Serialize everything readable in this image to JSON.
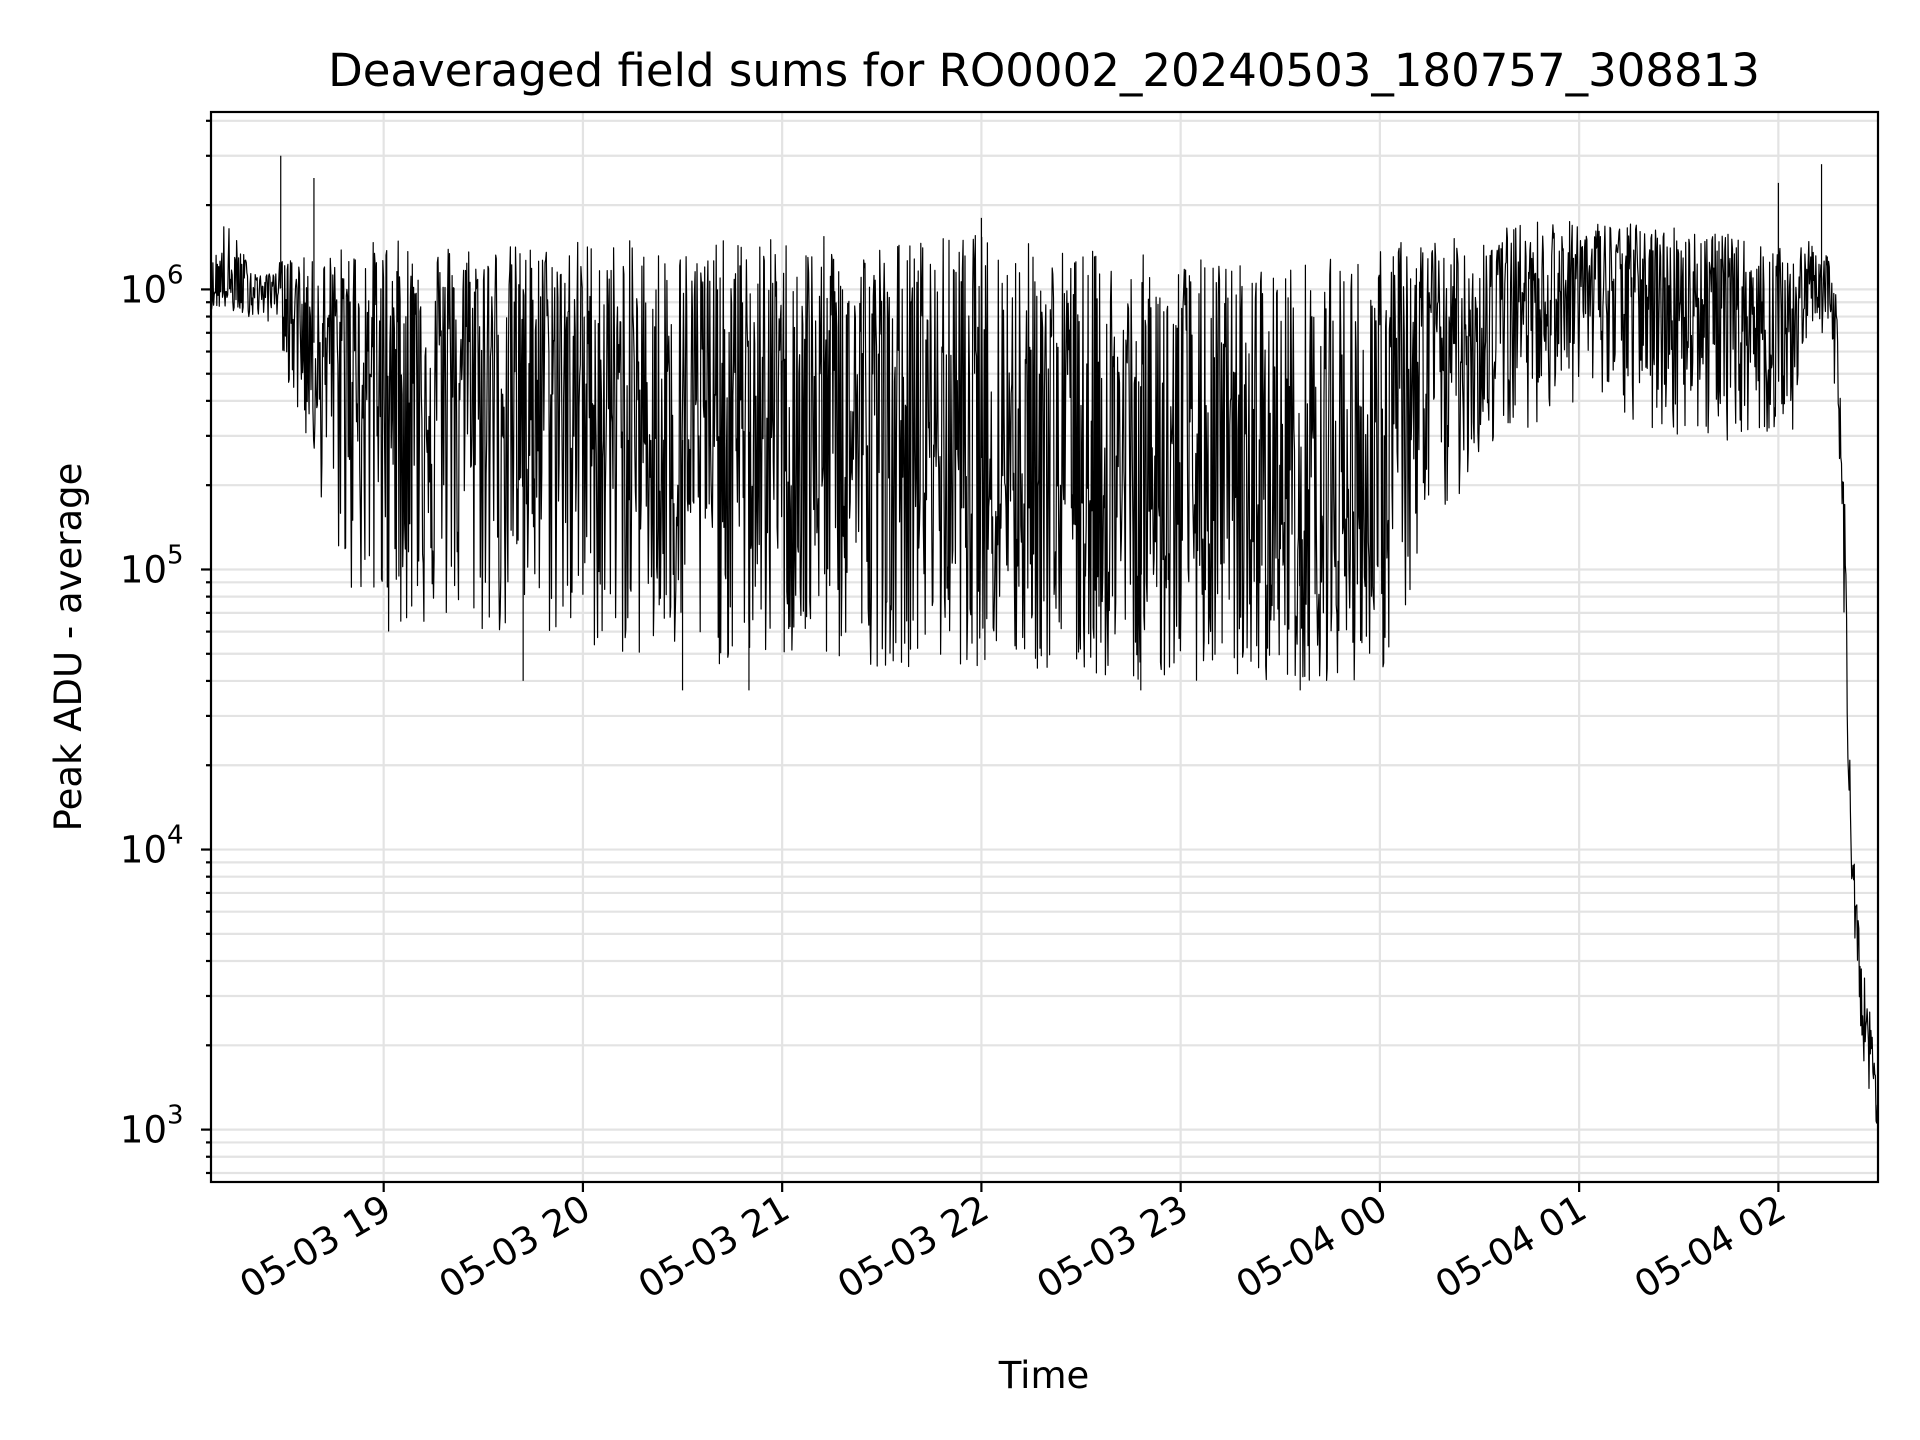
{
  "chart_data": {
    "type": "line",
    "title": "Deaveraged field sums for RO0002_20240503_180757_308813",
    "xlabel": "Time",
    "ylabel": "Peak ADU - average",
    "yscale": "log",
    "xlim": [
      "05-03 18:08",
      "05-04 02:30"
    ],
    "ylim": [
      650,
      4300000
    ],
    "grid": true,
    "x_ticks": [
      "05-03 19",
      "05-03 20",
      "05-03 21",
      "05-03 22",
      "05-03 23",
      "05-04 00",
      "05-04 01",
      "05-04 02"
    ],
    "y_ticks": [
      {
        "base": "10",
        "exp": "3",
        "value": 1000
      },
      {
        "base": "10",
        "exp": "4",
        "value": 10000
      },
      {
        "base": "10",
        "exp": "5",
        "value": 100000
      },
      {
        "base": "10",
        "exp": "6",
        "value": 1000000
      }
    ],
    "series_color": "#000000",
    "series": [
      {
        "x": [
          "05-03 18:08",
          "05-03 18:12",
          "05-03 18:16",
          "05-03 18:20",
          "05-03 18:24",
          "05-03 18:28",
          "05-03 18:32",
          "05-03 18:36",
          "05-03 18:40",
          "05-03 18:45",
          "05-03 18:50",
          "05-03 18:55",
          "05-03 19:00",
          "05-03 19:10",
          "05-03 19:20",
          "05-03 19:30",
          "05-03 19:40",
          "05-03 19:50",
          "05-03 20:00",
          "05-03 20:10",
          "05-03 20:20",
          "05-03 20:30",
          "05-03 20:40",
          "05-03 20:50",
          "05-03 21:00",
          "05-03 21:15",
          "05-03 21:30",
          "05-03 21:45",
          "05-03 22:00",
          "05-03 22:15",
          "05-03 22:30",
          "05-03 22:45",
          "05-03 23:00",
          "05-03 23:15",
          "05-03 23:30",
          "05-03 23:45",
          "05-04 00:00",
          "05-04 00:10",
          "05-04 00:20",
          "05-04 00:30",
          "05-04 00:40",
          "05-04 00:50",
          "05-04 01:00",
          "05-04 01:10",
          "05-04 01:20",
          "05-04 01:30",
          "05-04 01:40",
          "05-04 01:50",
          "05-04 02:00",
          "05-04 02:05",
          "05-04 02:10",
          "05-04 02:15",
          "05-04 02:18",
          "05-04 02:20",
          "05-04 02:22",
          "05-04 02:24",
          "05-04 02:26",
          "05-04 02:28",
          "05-04 02:30"
        ],
        "mid": [
          1000000,
          1000000,
          950000,
          1050000,
          1000000,
          1050000,
          900000,
          800000,
          600000,
          600000,
          550000,
          500000,
          500000,
          500000,
          480000,
          470000,
          470000,
          470000,
          420000,
          330000,
          300000,
          290000,
          300000,
          310000,
          300000,
          290000,
          280000,
          290000,
          250000,
          240000,
          200000,
          180000,
          160000,
          150000,
          150000,
          150000,
          180000,
          400000,
          600000,
          750000,
          900000,
          1000000,
          1050000,
          1000000,
          1000000,
          950000,
          900000,
          800000,
          700000,
          800000,
          1200000,
          1000000,
          500000,
          100000,
          10000,
          4000,
          2500,
          1800,
          1100
        ],
        "high": [
          1200000,
          1800000,
          1500000,
          1200000,
          1100000,
          1250000,
          1300000,
          1300000,
          1250000,
          1400000,
          1450000,
          1500000,
          1500000,
          1500000,
          1500000,
          1500000,
          1450000,
          1450000,
          1550000,
          1500000,
          1500000,
          1450000,
          1500000,
          1500000,
          1550000,
          1550000,
          1500000,
          1550000,
          1600000,
          1500000,
          1400000,
          1350000,
          1300000,
          1300000,
          1250000,
          1300000,
          1400000,
          1600000,
          1500000,
          1600000,
          1700000,
          1800000,
          1750000,
          1750000,
          1700000,
          1700000,
          1650000,
          1500000,
          1400000,
          1400000,
          1500000,
          1300000,
          900000,
          200000,
          12000,
          6000,
          3600,
          2400,
          1300
        ],
        "low": [
          850000,
          850000,
          800000,
          800000,
          750000,
          800000,
          400000,
          300000,
          200000,
          120000,
          80000,
          70000,
          60000,
          60000,
          60000,
          55000,
          55000,
          55000,
          50000,
          50000,
          45000,
          45000,
          45000,
          45000,
          45000,
          45000,
          45000,
          45000,
          45000,
          42000,
          40000,
          40000,
          40000,
          40000,
          40000,
          40000,
          40000,
          80000,
          150000,
          250000,
          300000,
          350000,
          400000,
          350000,
          300000,
          300000,
          280000,
          300000,
          300000,
          300000,
          700000,
          700000,
          300000,
          40000,
          8000,
          3000,
          1600,
          1200,
          1000
        ]
      }
    ],
    "spikes": [
      {
        "x": "05-03 18:29",
        "y": 3000000
      },
      {
        "x": "05-03 18:39",
        "y": 2500000
      },
      {
        "x": "05-03 22:00",
        "y": 1800000
      },
      {
        "x": "05-04 02:00",
        "y": 2400000
      },
      {
        "x": "05-04 02:13",
        "y": 2800000
      }
    ],
    "dips": [
      {
        "x": "05-03 19:42",
        "y": 40000
      },
      {
        "x": "05-03 20:30",
        "y": 37000
      },
      {
        "x": "05-03 20:50",
        "y": 37000
      },
      {
        "x": "05-03 22:48",
        "y": 37000
      },
      {
        "x": "05-03 23:36",
        "y": 37000
      }
    ]
  }
}
